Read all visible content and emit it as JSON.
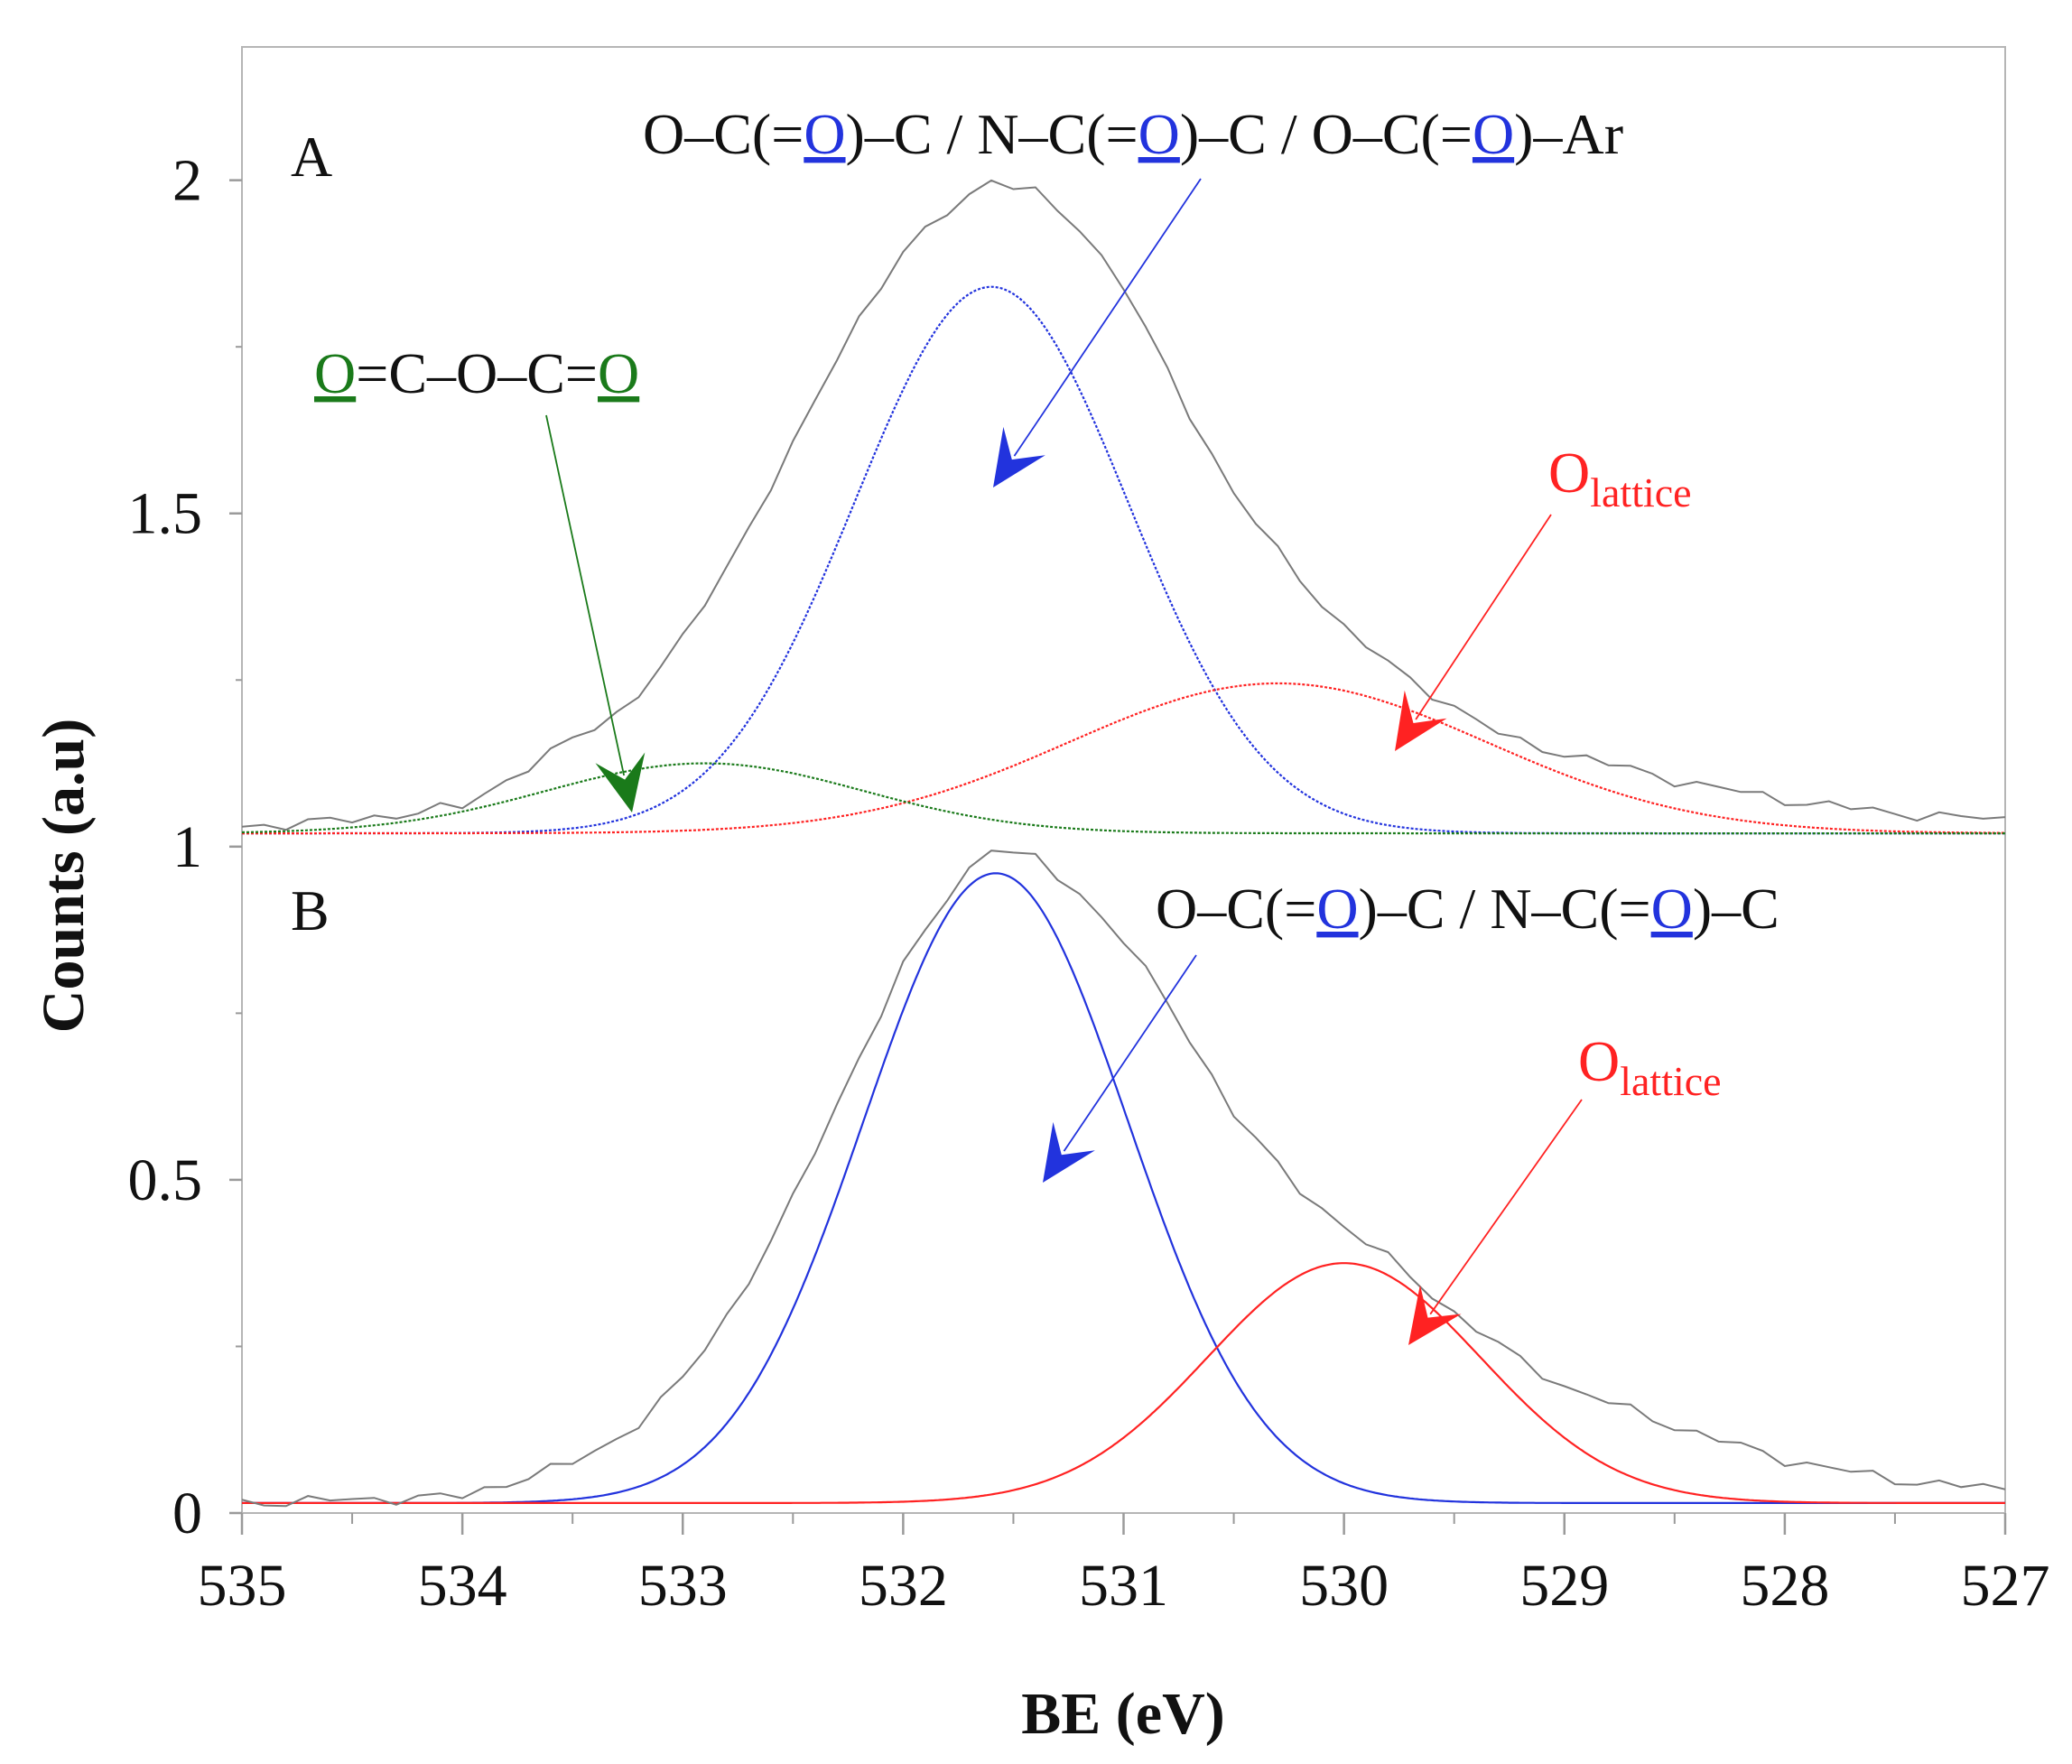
{
  "chart_data": {
    "type": "line",
    "xlabel": "BE (eV)",
    "ylabel": "Counts (a.u)",
    "xlim": [
      535,
      527
    ],
    "ylim": [
      0,
      2.2
    ],
    "x_ticks": [
      {
        "value": 535,
        "label": "535"
      },
      {
        "value": 534,
        "label": "534"
      },
      {
        "value": 533,
        "label": "533"
      },
      {
        "value": 532,
        "label": "532"
      },
      {
        "value": 531,
        "label": "531"
      },
      {
        "value": 530,
        "label": "530"
      },
      {
        "value": 529,
        "label": "529"
      },
      {
        "value": 528,
        "label": "528"
      },
      {
        "value": 527,
        "label": "527"
      }
    ],
    "y_ticks": [
      {
        "value": 0,
        "label": "0"
      },
      {
        "value": 0.5,
        "label": "0.5"
      },
      {
        "value": 1,
        "label": "1"
      },
      {
        "value": 1.5,
        "label": "1.5"
      },
      {
        "value": 2,
        "label": "2"
      }
    ],
    "colors": {
      "raw": "#7a7a7a",
      "blue": "#2233dd",
      "red": "#ff2222",
      "green": "#1a7a1a",
      "axis": "#9a9a9a",
      "text": "#111111"
    },
    "panels": [
      {
        "label": "A",
        "baseline": 1.02,
        "raw_envelope": [
          [
            535,
            1.03
          ],
          [
            534.5,
            1.04
          ],
          [
            534,
            1.06
          ],
          [
            533.75,
            1.11
          ],
          [
            533.5,
            1.16
          ],
          [
            533.25,
            1.21
          ],
          [
            533,
            1.31
          ],
          [
            532.75,
            1.45
          ],
          [
            532.5,
            1.6
          ],
          [
            532.25,
            1.77
          ],
          [
            532,
            1.89
          ],
          [
            531.75,
            1.97
          ],
          [
            531.6,
            2.0
          ],
          [
            531.4,
            1.98
          ],
          [
            531.2,
            1.93
          ],
          [
            531,
            1.84
          ],
          [
            530.75,
            1.68
          ],
          [
            530.5,
            1.53
          ],
          [
            530.25,
            1.42
          ],
          [
            530,
            1.33
          ],
          [
            529.75,
            1.26
          ],
          [
            529.5,
            1.21
          ],
          [
            529.25,
            1.16
          ],
          [
            529,
            1.14
          ],
          [
            528.5,
            1.1
          ],
          [
            528,
            1.07
          ],
          [
            527.5,
            1.05
          ],
          [
            527,
            1.04
          ]
        ],
        "series": [
          {
            "name": "O–C(=O)–C / N–C(=O)–C / O–C(=O)–Ar",
            "color": "blue",
            "center": 531.6,
            "height": 0.82,
            "sigma": 0.62
          },
          {
            "name": "Olattice",
            "color": "red",
            "center": 530.3,
            "height": 0.225,
            "sigma": 0.95
          },
          {
            "name": "O=C–O–C=O",
            "color": "green",
            "center": 532.9,
            "height": 0.105,
            "sigma": 0.72
          }
        ]
      },
      {
        "label": "B",
        "baseline": 0.015,
        "raw_envelope": [
          [
            535,
            0.015
          ],
          [
            534.5,
            0.02
          ],
          [
            534,
            0.025
          ],
          [
            533.75,
            0.05
          ],
          [
            533.5,
            0.075
          ],
          [
            533.25,
            0.12
          ],
          [
            533,
            0.2
          ],
          [
            532.75,
            0.32
          ],
          [
            532.5,
            0.47
          ],
          [
            532.25,
            0.65
          ],
          [
            532,
            0.82
          ],
          [
            531.75,
            0.95
          ],
          [
            531.6,
            1.0
          ],
          [
            531.4,
            0.98
          ],
          [
            531.2,
            0.93
          ],
          [
            531,
            0.86
          ],
          [
            530.75,
            0.74
          ],
          [
            530.5,
            0.6
          ],
          [
            530.25,
            0.5
          ],
          [
            530,
            0.43
          ],
          [
            529.75,
            0.37
          ],
          [
            529.5,
            0.3
          ],
          [
            529.25,
            0.24
          ],
          [
            529,
            0.19
          ],
          [
            528.5,
            0.13
          ],
          [
            528,
            0.08
          ],
          [
            527.5,
            0.05
          ],
          [
            527,
            0.035
          ]
        ],
        "series": [
          {
            "name": "O–C(=O)–C / N–C(=O)–C",
            "color": "blue",
            "center": 531.58,
            "height": 0.945,
            "sigma": 0.6
          },
          {
            "name": "Olattice",
            "color": "red",
            "center": 530.0,
            "height": 0.36,
            "sigma": 0.62
          }
        ]
      }
    ],
    "annotations": {
      "a_blue": {
        "parts": [
          {
            "t": "O–C(=",
            "c": "text"
          },
          {
            "t": "O",
            "c": "blue",
            "u": true
          },
          {
            "t": ")–C / N–C(=",
            "c": "text"
          },
          {
            "t": "O",
            "c": "blue",
            "u": true
          },
          {
            "t": ")–C  / O–C(=",
            "c": "text"
          },
          {
            "t": "O",
            "c": "blue",
            "u": true
          },
          {
            "t": ")–Ar",
            "c": "text"
          }
        ]
      },
      "a_green": {
        "parts": [
          {
            "t": "O",
            "c": "green",
            "u": true
          },
          {
            "t": "=C–O–C=",
            "c": "text"
          },
          {
            "t": "O",
            "c": "green",
            "u": true
          }
        ]
      },
      "b_blue": {
        "parts": [
          {
            "t": "O–C(=",
            "c": "text"
          },
          {
            "t": "O",
            "c": "blue",
            "u": true
          },
          {
            "t": ")–C / N–C(=",
            "c": "text"
          },
          {
            "t": "O",
            "c": "blue",
            "u": true
          },
          {
            "t": ")–C",
            "c": "text"
          }
        ]
      },
      "lattice_main": "O",
      "lattice_sub": "lattice"
    }
  }
}
